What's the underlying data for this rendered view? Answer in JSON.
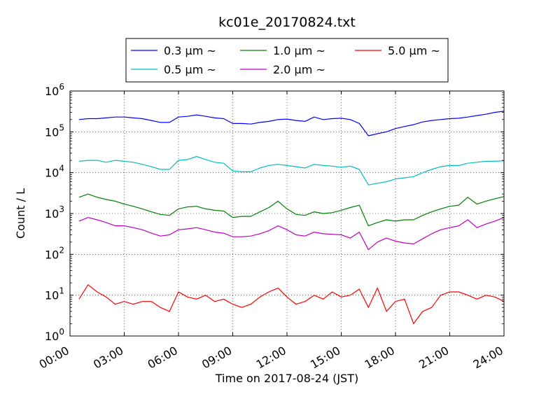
{
  "chart_data": {
    "type": "line",
    "title": "kc01e_20170824.txt",
    "xlabel": "Time on 2017-08-24 (JST)",
    "ylabel": "Count / L",
    "yscale": "log",
    "ylim": [
      1,
      1000000
    ],
    "y_ticks": [
      {
        "value": 1,
        "base": "10",
        "exp": "0"
      },
      {
        "value": 10,
        "base": "10",
        "exp": "1"
      },
      {
        "value": 100,
        "base": "10",
        "exp": "2"
      },
      {
        "value": 1000,
        "base": "10",
        "exp": "3"
      },
      {
        "value": 10000,
        "base": "10",
        "exp": "4"
      },
      {
        "value": 100000,
        "base": "10",
        "exp": "5"
      },
      {
        "value": 1000000,
        "base": "10",
        "exp": "6"
      }
    ],
    "x_ticks": [
      "00:00",
      "03:00",
      "06:00",
      "09:00",
      "12:00",
      "15:00",
      "18:00",
      "21:00",
      "24:00"
    ],
    "grid": true,
    "legend_position": "top",
    "x": [
      "00:30",
      "01:00",
      "01:30",
      "02:00",
      "02:30",
      "03:00",
      "03:30",
      "04:00",
      "04:30",
      "05:00",
      "05:30",
      "06:00",
      "06:30",
      "07:00",
      "07:30",
      "08:00",
      "08:30",
      "09:00",
      "09:30",
      "10:00",
      "10:30",
      "11:00",
      "11:30",
      "12:00",
      "12:30",
      "13:00",
      "13:30",
      "14:00",
      "14:30",
      "15:00",
      "15:30",
      "16:00",
      "16:30",
      "17:00",
      "17:30",
      "18:00",
      "18:30",
      "19:00",
      "19:30",
      "20:00",
      "20:30",
      "21:00",
      "21:30",
      "22:00",
      "22:30",
      "23:00",
      "23:30",
      "24:00"
    ],
    "series": [
      {
        "name": "0.3 μm ~",
        "color": "#0000ff",
        "values": [
          200000,
          210000,
          210000,
          220000,
          230000,
          230000,
          220000,
          210000,
          190000,
          170000,
          170000,
          230000,
          240000,
          260000,
          240000,
          220000,
          210000,
          160000,
          160000,
          155000,
          170000,
          180000,
          200000,
          205000,
          190000,
          180000,
          230000,
          200000,
          210000,
          215000,
          200000,
          160000,
          80000,
          90000,
          100000,
          120000,
          135000,
          150000,
          175000,
          190000,
          200000,
          210000,
          215000,
          230000,
          250000,
          270000,
          300000,
          320000
        ]
      },
      {
        "name": "0.5 μm ~",
        "color": "#00bfbf",
        "values": [
          19000,
          20000,
          20000,
          18000,
          20000,
          19000,
          18000,
          16000,
          14000,
          12000,
          12000,
          20000,
          21000,
          25000,
          21000,
          18000,
          17000,
          11000,
          10500,
          10500,
          13000,
          15000,
          16000,
          15000,
          14000,
          13000,
          16000,
          15000,
          14500,
          13500,
          14500,
          12000,
          5000,
          5500,
          6000,
          7000,
          7500,
          8000,
          10000,
          12000,
          14000,
          15000,
          15000,
          17000,
          18000,
          19000,
          19000,
          19500
        ]
      },
      {
        "name": "1.0 μm ~",
        "color": "#008000",
        "values": [
          2500,
          3000,
          2500,
          2200,
          2000,
          1700,
          1500,
          1300,
          1100,
          950,
          900,
          1300,
          1450,
          1500,
          1300,
          1200,
          1150,
          800,
          850,
          850,
          1100,
          1400,
          2000,
          1300,
          950,
          900,
          1100,
          1000,
          1050,
          1200,
          1400,
          1600,
          500,
          600,
          700,
          650,
          700,
          700,
          900,
          1100,
          1300,
          1500,
          1600,
          2500,
          1700,
          2000,
          2300,
          2600
        ]
      },
      {
        "name": "2.0 μm ~",
        "color": "#bf00bf",
        "values": [
          650,
          800,
          700,
          600,
          500,
          500,
          450,
          400,
          330,
          280,
          300,
          400,
          420,
          450,
          400,
          350,
          330,
          270,
          270,
          280,
          320,
          380,
          500,
          400,
          300,
          280,
          350,
          320,
          310,
          300,
          250,
          350,
          130,
          200,
          250,
          210,
          190,
          180,
          240,
          320,
          400,
          450,
          500,
          700,
          450,
          550,
          650,
          800
        ]
      },
      {
        "name": "5.0 μm ~",
        "color": "#ff0000",
        "values": [
          8,
          18,
          12,
          9,
          6,
          7,
          6,
          7,
          7,
          5,
          4,
          12,
          9,
          8,
          10,
          7,
          8,
          6,
          5,
          6,
          9,
          12,
          15,
          9,
          6,
          7,
          10,
          8,
          12,
          9,
          10,
          14,
          5,
          15,
          4,
          7,
          8,
          2,
          4,
          5,
          10,
          12,
          12,
          10,
          8,
          10,
          9,
          7
        ]
      }
    ]
  }
}
